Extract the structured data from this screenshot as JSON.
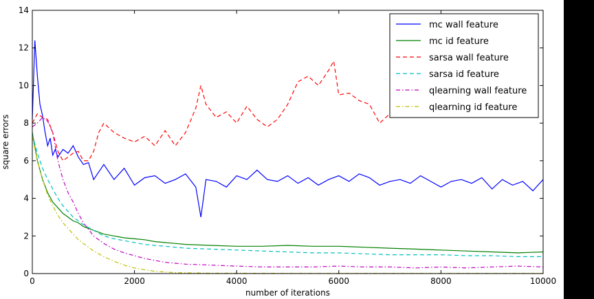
{
  "chart_data": {
    "type": "line",
    "title": "",
    "xlabel": "number of iterations",
    "ylabel": "square errors",
    "xlim": [
      0,
      10000
    ],
    "ylim": [
      0,
      14
    ],
    "xticks": [
      0,
      2000,
      4000,
      6000,
      8000,
      10000
    ],
    "yticks": [
      0,
      2,
      4,
      6,
      8,
      10,
      12,
      14
    ],
    "grid": false,
    "legend_position": "top-right",
    "series": [
      {
        "name": "mc wall feature",
        "color": "#0000ff",
        "style": "solid",
        "x": [
          0,
          50,
          100,
          150,
          200,
          250,
          300,
          350,
          400,
          450,
          500,
          600,
          700,
          800,
          900,
          1000,
          1100,
          1200,
          1400,
          1600,
          1800,
          2000,
          2200,
          2400,
          2600,
          2800,
          3000,
          3200,
          3300,
          3400,
          3600,
          3800,
          4000,
          4200,
          4400,
          4600,
          4800,
          5000,
          5200,
          5400,
          5600,
          5800,
          6000,
          6200,
          6400,
          6600,
          6800,
          7000,
          7200,
          7400,
          7600,
          7800,
          8000,
          8200,
          8400,
          8600,
          8800,
          9000,
          9200,
          9400,
          9600,
          9800,
          10000
        ],
        "values": [
          8.2,
          12.4,
          10.5,
          9.0,
          8.4,
          7.5,
          6.8,
          7.2,
          6.3,
          6.6,
          6.2,
          6.6,
          6.4,
          6.8,
          6.2,
          5.8,
          5.9,
          5.0,
          5.8,
          5.0,
          5.6,
          4.7,
          5.1,
          5.2,
          4.8,
          5.0,
          5.3,
          4.6,
          3.0,
          5.0,
          4.9,
          4.6,
          5.2,
          5.0,
          5.5,
          5.0,
          4.9,
          5.2,
          4.8,
          5.1,
          4.7,
          5.0,
          5.2,
          4.9,
          5.3,
          5.1,
          4.7,
          4.9,
          5.0,
          4.8,
          5.2,
          4.9,
          4.6,
          4.9,
          5.0,
          4.8,
          5.1,
          4.5,
          5.0,
          4.7,
          4.9,
          4.4,
          5.0
        ]
      },
      {
        "name": "mc id feature",
        "color": "#008000",
        "style": "solid",
        "x": [
          0,
          100,
          200,
          300,
          400,
          500,
          600,
          700,
          800,
          900,
          1000,
          1200,
          1400,
          1600,
          1800,
          2000,
          2200,
          2400,
          2600,
          2800,
          3000,
          3500,
          4000,
          4500,
          5000,
          5500,
          6000,
          6500,
          7000,
          7500,
          8000,
          8500,
          9000,
          9500,
          10000
        ],
        "values": [
          7.5,
          6.0,
          5.0,
          4.3,
          3.8,
          3.5,
          3.2,
          3.0,
          2.8,
          2.7,
          2.5,
          2.3,
          2.1,
          2.0,
          1.9,
          1.85,
          1.8,
          1.7,
          1.65,
          1.6,
          1.55,
          1.5,
          1.45,
          1.45,
          1.5,
          1.45,
          1.45,
          1.4,
          1.35,
          1.3,
          1.25,
          1.2,
          1.15,
          1.1,
          1.15
        ]
      },
      {
        "name": "sarsa wall feature",
        "color": "#ff0000",
        "style": "dashed",
        "x": [
          0,
          100,
          200,
          300,
          400,
          500,
          600,
          700,
          800,
          900,
          1000,
          1100,
          1200,
          1300,
          1400,
          1600,
          1800,
          2000,
          2200,
          2400,
          2600,
          2800,
          3000,
          3200,
          3300,
          3400,
          3600,
          3800,
          4000,
          4200,
          4400,
          4600,
          4800,
          5000,
          5200,
          5400,
          5600,
          5800,
          5900,
          6000,
          6200,
          6400,
          6600,
          6800,
          7000
        ],
        "values": [
          8.0,
          8.5,
          8.3,
          8.2,
          7.5,
          6.5,
          6.0,
          6.2,
          6.4,
          6.5,
          6.0,
          6.0,
          6.5,
          7.5,
          8.0,
          7.5,
          7.2,
          7.0,
          7.3,
          6.8,
          7.6,
          6.8,
          7.5,
          8.8,
          10.0,
          9.0,
          8.3,
          8.6,
          8.0,
          8.9,
          8.2,
          7.8,
          8.2,
          9.0,
          10.2,
          10.5,
          10.0,
          10.8,
          11.3,
          9.5,
          9.6,
          9.2,
          9.0,
          8.0,
          8.5
        ]
      },
      {
        "name": "sarsa id feature",
        "color": "#00bfbf",
        "style": "dashed",
        "x": [
          0,
          100,
          200,
          300,
          400,
          500,
          600,
          700,
          800,
          900,
          1000,
          1200,
          1400,
          1600,
          1800,
          2000,
          2200,
          2400,
          2600,
          2800,
          3000,
          3500,
          4000,
          4500,
          5000,
          5500,
          6000,
          6500,
          7000,
          7500,
          8000,
          8500,
          9000,
          9500,
          10000
        ],
        "values": [
          7.4,
          6.4,
          5.6,
          5.0,
          4.5,
          4.0,
          3.6,
          3.3,
          3.0,
          2.8,
          2.6,
          2.3,
          2.0,
          1.85,
          1.75,
          1.65,
          1.55,
          1.5,
          1.45,
          1.4,
          1.35,
          1.3,
          1.25,
          1.2,
          1.15,
          1.1,
          1.1,
          1.05,
          1.0,
          1.0,
          1.0,
          0.95,
          0.95,
          0.9,
          0.9
        ]
      },
      {
        "name": "qlearning wall feature",
        "color": "#bf00bf",
        "style": "dashdot",
        "x": [
          0,
          100,
          200,
          300,
          400,
          500,
          600,
          700,
          800,
          900,
          1000,
          1200,
          1400,
          1600,
          1800,
          2000,
          2200,
          2400,
          2600,
          2800,
          3000,
          3500,
          4000,
          4500,
          5000,
          5500,
          6000,
          6500,
          7000,
          7500,
          8000,
          8500,
          9000,
          9500,
          10000
        ],
        "values": [
          7.8,
          8.0,
          8.3,
          8.1,
          7.5,
          6.0,
          5.0,
          4.3,
          3.8,
          3.2,
          2.7,
          2.0,
          1.6,
          1.3,
          1.1,
          0.95,
          0.8,
          0.7,
          0.6,
          0.55,
          0.5,
          0.45,
          0.4,
          0.35,
          0.35,
          0.35,
          0.4,
          0.35,
          0.35,
          0.3,
          0.35,
          0.3,
          0.35,
          0.4,
          0.35
        ]
      },
      {
        "name": "qlearning id feature",
        "color": "#bfbf00",
        "style": "dashdot",
        "x": [
          0,
          100,
          200,
          300,
          400,
          500,
          600,
          700,
          800,
          900,
          1000,
          1200,
          1400,
          1600,
          1800,
          2000,
          2200,
          2400,
          2600,
          2800,
          3000,
          3500,
          4000,
          5000,
          6000,
          7000,
          8000,
          9000,
          10000
        ],
        "values": [
          7.3,
          6.0,
          5.0,
          4.2,
          3.6,
          3.1,
          2.7,
          2.4,
          2.1,
          1.8,
          1.6,
          1.2,
          0.9,
          0.65,
          0.45,
          0.3,
          0.2,
          0.12,
          0.08,
          0.05,
          0.04,
          0.02,
          0.02,
          0.01,
          0.01,
          0.01,
          0.01,
          0.01,
          0.01
        ]
      }
    ]
  }
}
